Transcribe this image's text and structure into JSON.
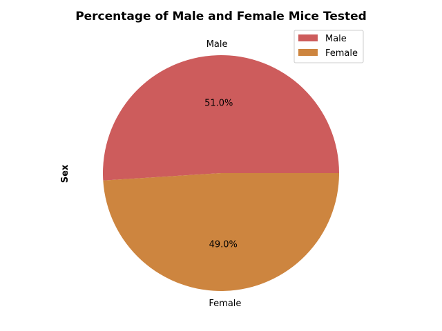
{
  "chart_data": {
    "type": "pie",
    "title": "Percentage of Male and Female Mice Tested",
    "ylabel": "Sex",
    "categories": [
      "Male",
      "Female"
    ],
    "values": [
      51.0,
      49.0
    ],
    "percent_labels": [
      "51.0%",
      "49.0%"
    ],
    "colors": [
      "#cd5c5c",
      "#cd853f"
    ],
    "legend_position": "top-right",
    "start_angle_deg": 0,
    "direction": "counterclockwise"
  }
}
